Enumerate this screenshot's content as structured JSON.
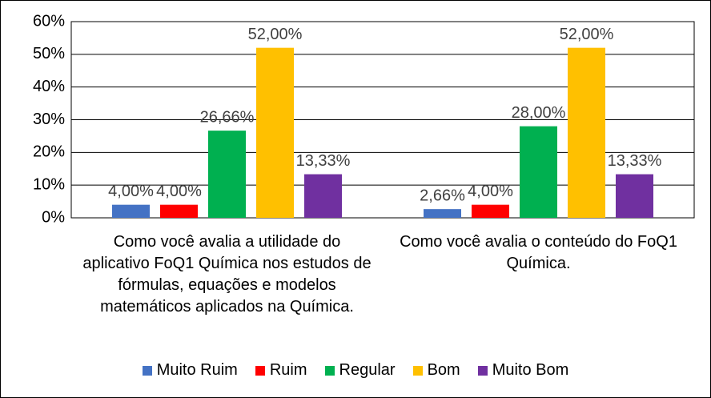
{
  "chart_data": {
    "type": "bar",
    "categories": [
      "Como você avalia a utilidade do aplicativo FoQ1 Química nos estudos de fórmulas, equações e modelos matemáticos aplicados na Química.",
      "Como você avalia o conteúdo do FoQ1 Química."
    ],
    "series": [
      {
        "name": "Muito Ruim",
        "color": "#4472c4",
        "values": [
          4,
          2.66
        ],
        "value_labels": [
          "4,00%",
          "2,66%"
        ]
      },
      {
        "name": "Ruim",
        "color": "#ff0000",
        "values": [
          4,
          4
        ],
        "value_labels": [
          "4,00%",
          "4,00%"
        ]
      },
      {
        "name": "Regular",
        "color": "#00b050",
        "values": [
          26.66,
          28
        ],
        "value_labels": [
          "26,66%",
          "28,00%"
        ]
      },
      {
        "name": "Bom",
        "color": "#ffc000",
        "values": [
          52,
          52
        ],
        "value_labels": [
          "52,00%",
          "52,00%"
        ]
      },
      {
        "name": "Muito Bom",
        "color": "#7030a0",
        "values": [
          13.33,
          13.33
        ],
        "value_labels": [
          "13,33%",
          "13,33%"
        ]
      }
    ],
    "ylim": [
      0,
      60
    ],
    "yticks": [
      {
        "value": 0,
        "label": "0%"
      },
      {
        "value": 10,
        "label": "10%"
      },
      {
        "value": 20,
        "label": "20%"
      },
      {
        "value": 30,
        "label": "30%"
      },
      {
        "value": 40,
        "label": "40%"
      },
      {
        "value": 50,
        "label": "50%"
      },
      {
        "value": 60,
        "label": "60%"
      }
    ],
    "grid": true,
    "legend": "bottom"
  }
}
